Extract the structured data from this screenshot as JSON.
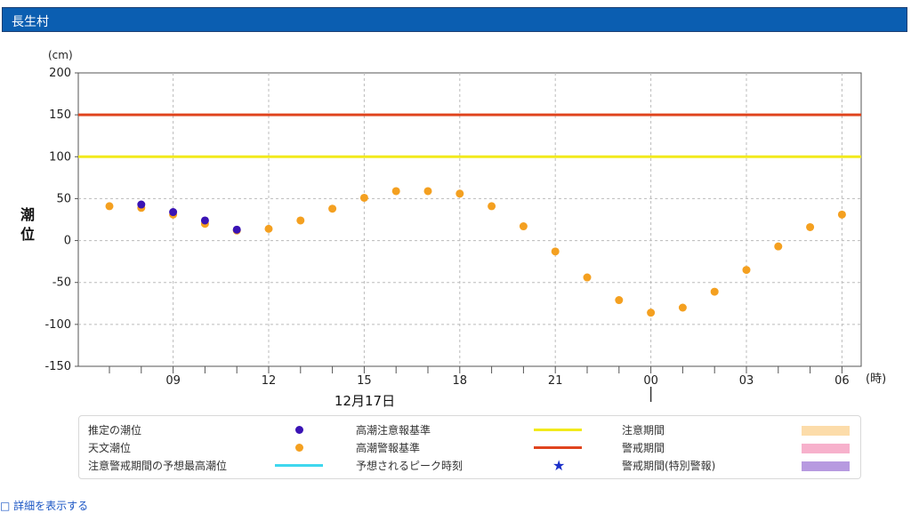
{
  "station": {
    "name": "長生村"
  },
  "chart_data": {
    "type": "scatter",
    "unit_label": "(cm)",
    "ylabel": "潮位",
    "xunit_label": "(時)",
    "date_label": "12月17日",
    "ylim": [
      -150,
      200
    ],
    "yticks": [
      200,
      150,
      100,
      50,
      0,
      -50,
      -100,
      -150
    ],
    "xticks": [
      "09",
      "12",
      "15",
      "18",
      "21",
      "00",
      "03",
      "06"
    ],
    "grid": true,
    "x_hours": [
      "07:00",
      "08:00",
      "09:00",
      "10:00",
      "11:00",
      "12:00",
      "13:00",
      "14:00",
      "15:00",
      "16:00",
      "17:00",
      "18:00",
      "19:00",
      "20:00",
      "21:00",
      "22:00",
      "23:00",
      "00:00",
      "01:00",
      "02:00",
      "03:00",
      "04:00",
      "05:00",
      "06:00"
    ],
    "series": [
      {
        "name": "天文潮位",
        "color": "#f4a020",
        "x": [
          "07:00",
          "08:00",
          "09:00",
          "10:00",
          "11:00",
          "12:00",
          "13:00",
          "14:00",
          "15:00",
          "16:00",
          "17:00",
          "18:00",
          "19:00",
          "20:00",
          "21:00",
          "22:00",
          "23:00",
          "00:00",
          "01:00",
          "02:00",
          "03:00",
          "04:00",
          "05:00",
          "06:00"
        ],
        "values": [
          41,
          39,
          31,
          20,
          12,
          14,
          24,
          38,
          51,
          59,
          59,
          56,
          41,
          17,
          -13,
          -44,
          -71,
          -86,
          -80,
          -61,
          -35,
          -7,
          16,
          31
        ]
      },
      {
        "name": "推定の潮位",
        "color": "#3a13b5",
        "x": [
          "08:00",
          "09:00",
          "10:00",
          "11:00"
        ],
        "values": [
          43,
          34,
          24,
          13
        ]
      }
    ],
    "thresholds": [
      {
        "name": "高潮注意報基準",
        "value": 100,
        "color": "#f2ea1c"
      },
      {
        "name": "高潮警報基準",
        "value": 150,
        "color": "#e0441e"
      }
    ]
  },
  "legend": {
    "col1": [
      {
        "label": "推定の潮位",
        "symbol": "dot",
        "color": "#3a13b5"
      },
      {
        "label": "天文潮位",
        "symbol": "dot",
        "color": "#f4a020"
      },
      {
        "label": "注意警戒期間の予想最高潮位",
        "symbol": "line",
        "color": "#3fd7ee"
      }
    ],
    "col2": [
      {
        "label": "高潮注意報基準",
        "symbol": "line",
        "color": "#f2ea1c"
      },
      {
        "label": "高潮警報基準",
        "symbol": "line",
        "color": "#e0441e"
      },
      {
        "label": "予想されるピーク時刻",
        "symbol": "star",
        "color": "#1a2fc9"
      }
    ],
    "col3": [
      {
        "label": "注意期間",
        "symbol": "swatch",
        "color": "#fcdcaa"
      },
      {
        "label": "警戒期間",
        "symbol": "swatch",
        "color": "#f7b1cc"
      },
      {
        "label": "警戒期間(特別警報)",
        "symbol": "swatch",
        "color": "#b79ae0"
      }
    ]
  },
  "footer": {
    "detail_link": "□ 詳細を表示する"
  }
}
